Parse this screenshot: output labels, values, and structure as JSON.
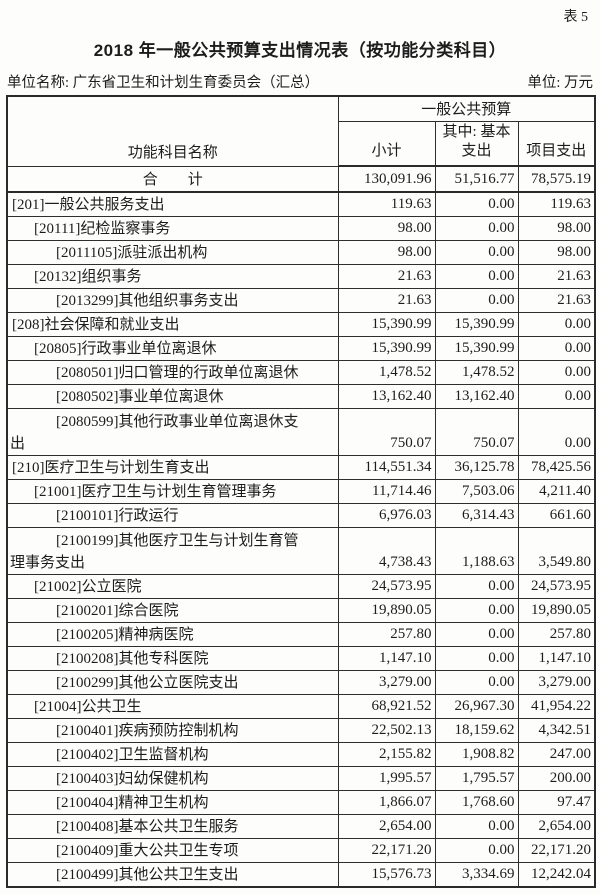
{
  "page": {
    "table_no": "表 5",
    "title": "2018 年一般公共预算支出情况表（按功能分类科目）",
    "unit_name": "单位名称: 广东省卫生和计划生育委员会（汇总）",
    "unit_of_measure": "单位: 万元"
  },
  "table": {
    "name_header": "功能科目名称",
    "group_header": "一般公共预算",
    "col_subtotal": "小计",
    "col_basic_line1": "其中: 基本",
    "col_basic_line2": "支出",
    "col_project": "项目支出",
    "total_row": {
      "name": "合　　计",
      "values": [
        "130,091.96",
        "51,516.77",
        "78,575.19"
      ]
    },
    "rows": [
      {
        "name": "[201]一般公共服务支出",
        "indent": 0,
        "values": [
          "119.63",
          "0.00",
          "119.63"
        ]
      },
      {
        "name": "[20111]纪检监察事务",
        "indent": 1,
        "values": [
          "98.00",
          "0.00",
          "98.00"
        ]
      },
      {
        "name": "[2011105]派驻派出机构",
        "indent": 2,
        "values": [
          "98.00",
          "0.00",
          "98.00"
        ]
      },
      {
        "name": "[20132]组织事务",
        "indent": 1,
        "values": [
          "21.63",
          "0.00",
          "21.63"
        ]
      },
      {
        "name": "[2013299]其他组织事务支出",
        "indent": 2,
        "values": [
          "21.63",
          "0.00",
          "21.63"
        ]
      },
      {
        "name": "[208]社会保障和就业支出",
        "indent": 0,
        "values": [
          "15,390.99",
          "15,390.99",
          "0.00"
        ]
      },
      {
        "name": "[20805]行政事业单位离退休",
        "indent": 1,
        "values": [
          "15,390.99",
          "15,390.99",
          "0.00"
        ]
      },
      {
        "name": "[2080501]归口管理的行政单位离退休",
        "indent": 2,
        "values": [
          "1,478.52",
          "1,478.52",
          "0.00"
        ]
      },
      {
        "name": "[2080502]事业单位离退休",
        "indent": 2,
        "values": [
          "13,162.40",
          "13,162.40",
          "0.00"
        ]
      },
      {
        "name": "[2080599]其他行政事业单位离退休支出",
        "indent": 2,
        "wrap_line2": "出",
        "values": [
          "750.07",
          "750.07",
          "0.00"
        ]
      },
      {
        "name": "[210]医疗卫生与计划生育支出",
        "indent": 0,
        "values": [
          "114,551.34",
          "36,125.78",
          "78,425.56"
        ]
      },
      {
        "name": "[21001]医疗卫生与计划生育管理事务",
        "indent": 1,
        "values": [
          "11,714.46",
          "7,503.06",
          "4,211.40"
        ]
      },
      {
        "name": "[2100101]行政运行",
        "indent": 2,
        "values": [
          "6,976.03",
          "6,314.43",
          "661.60"
        ]
      },
      {
        "name": "[2100199]其他医疗卫生与计划生育管理事务支出",
        "indent": 2,
        "wrap_line2": "理事务支出",
        "values": [
          "4,738.43",
          "1,188.63",
          "3,549.80"
        ]
      },
      {
        "name": "[21002]公立医院",
        "indent": 1,
        "values": [
          "24,573.95",
          "0.00",
          "24,573.95"
        ]
      },
      {
        "name": "[2100201]综合医院",
        "indent": 2,
        "values": [
          "19,890.05",
          "0.00",
          "19,890.05"
        ]
      },
      {
        "name": "[2100205]精神病医院",
        "indent": 2,
        "values": [
          "257.80",
          "0.00",
          "257.80"
        ]
      },
      {
        "name": "[2100208]其他专科医院",
        "indent": 2,
        "values": [
          "1,147.10",
          "0.00",
          "1,147.10"
        ]
      },
      {
        "name": "[2100299]其他公立医院支出",
        "indent": 2,
        "values": [
          "3,279.00",
          "0.00",
          "3,279.00"
        ]
      },
      {
        "name": "[21004]公共卫生",
        "indent": 1,
        "values": [
          "68,921.52",
          "26,967.30",
          "41,954.22"
        ]
      },
      {
        "name": "[2100401]疾病预防控制机构",
        "indent": 2,
        "values": [
          "22,502.13",
          "18,159.62",
          "4,342.51"
        ]
      },
      {
        "name": "[2100402]卫生监督机构",
        "indent": 2,
        "values": [
          "2,155.82",
          "1,908.82",
          "247.00"
        ]
      },
      {
        "name": "[2100403]妇幼保健机构",
        "indent": 2,
        "values": [
          "1,995.57",
          "1,795.57",
          "200.00"
        ]
      },
      {
        "name": "[2100404]精神卫生机构",
        "indent": 2,
        "values": [
          "1,866.07",
          "1,768.60",
          "97.47"
        ]
      },
      {
        "name": "[2100408]基本公共卫生服务",
        "indent": 2,
        "values": [
          "2,654.00",
          "0.00",
          "2,654.00"
        ]
      },
      {
        "name": "[2100409]重大公共卫生专项",
        "indent": 2,
        "values": [
          "22,171.20",
          "0.00",
          "22,171.20"
        ]
      },
      {
        "name": "[2100499]其他公共卫生支出",
        "indent": 2,
        "values": [
          "15,576.73",
          "3,334.69",
          "12,242.04"
        ]
      }
    ]
  }
}
